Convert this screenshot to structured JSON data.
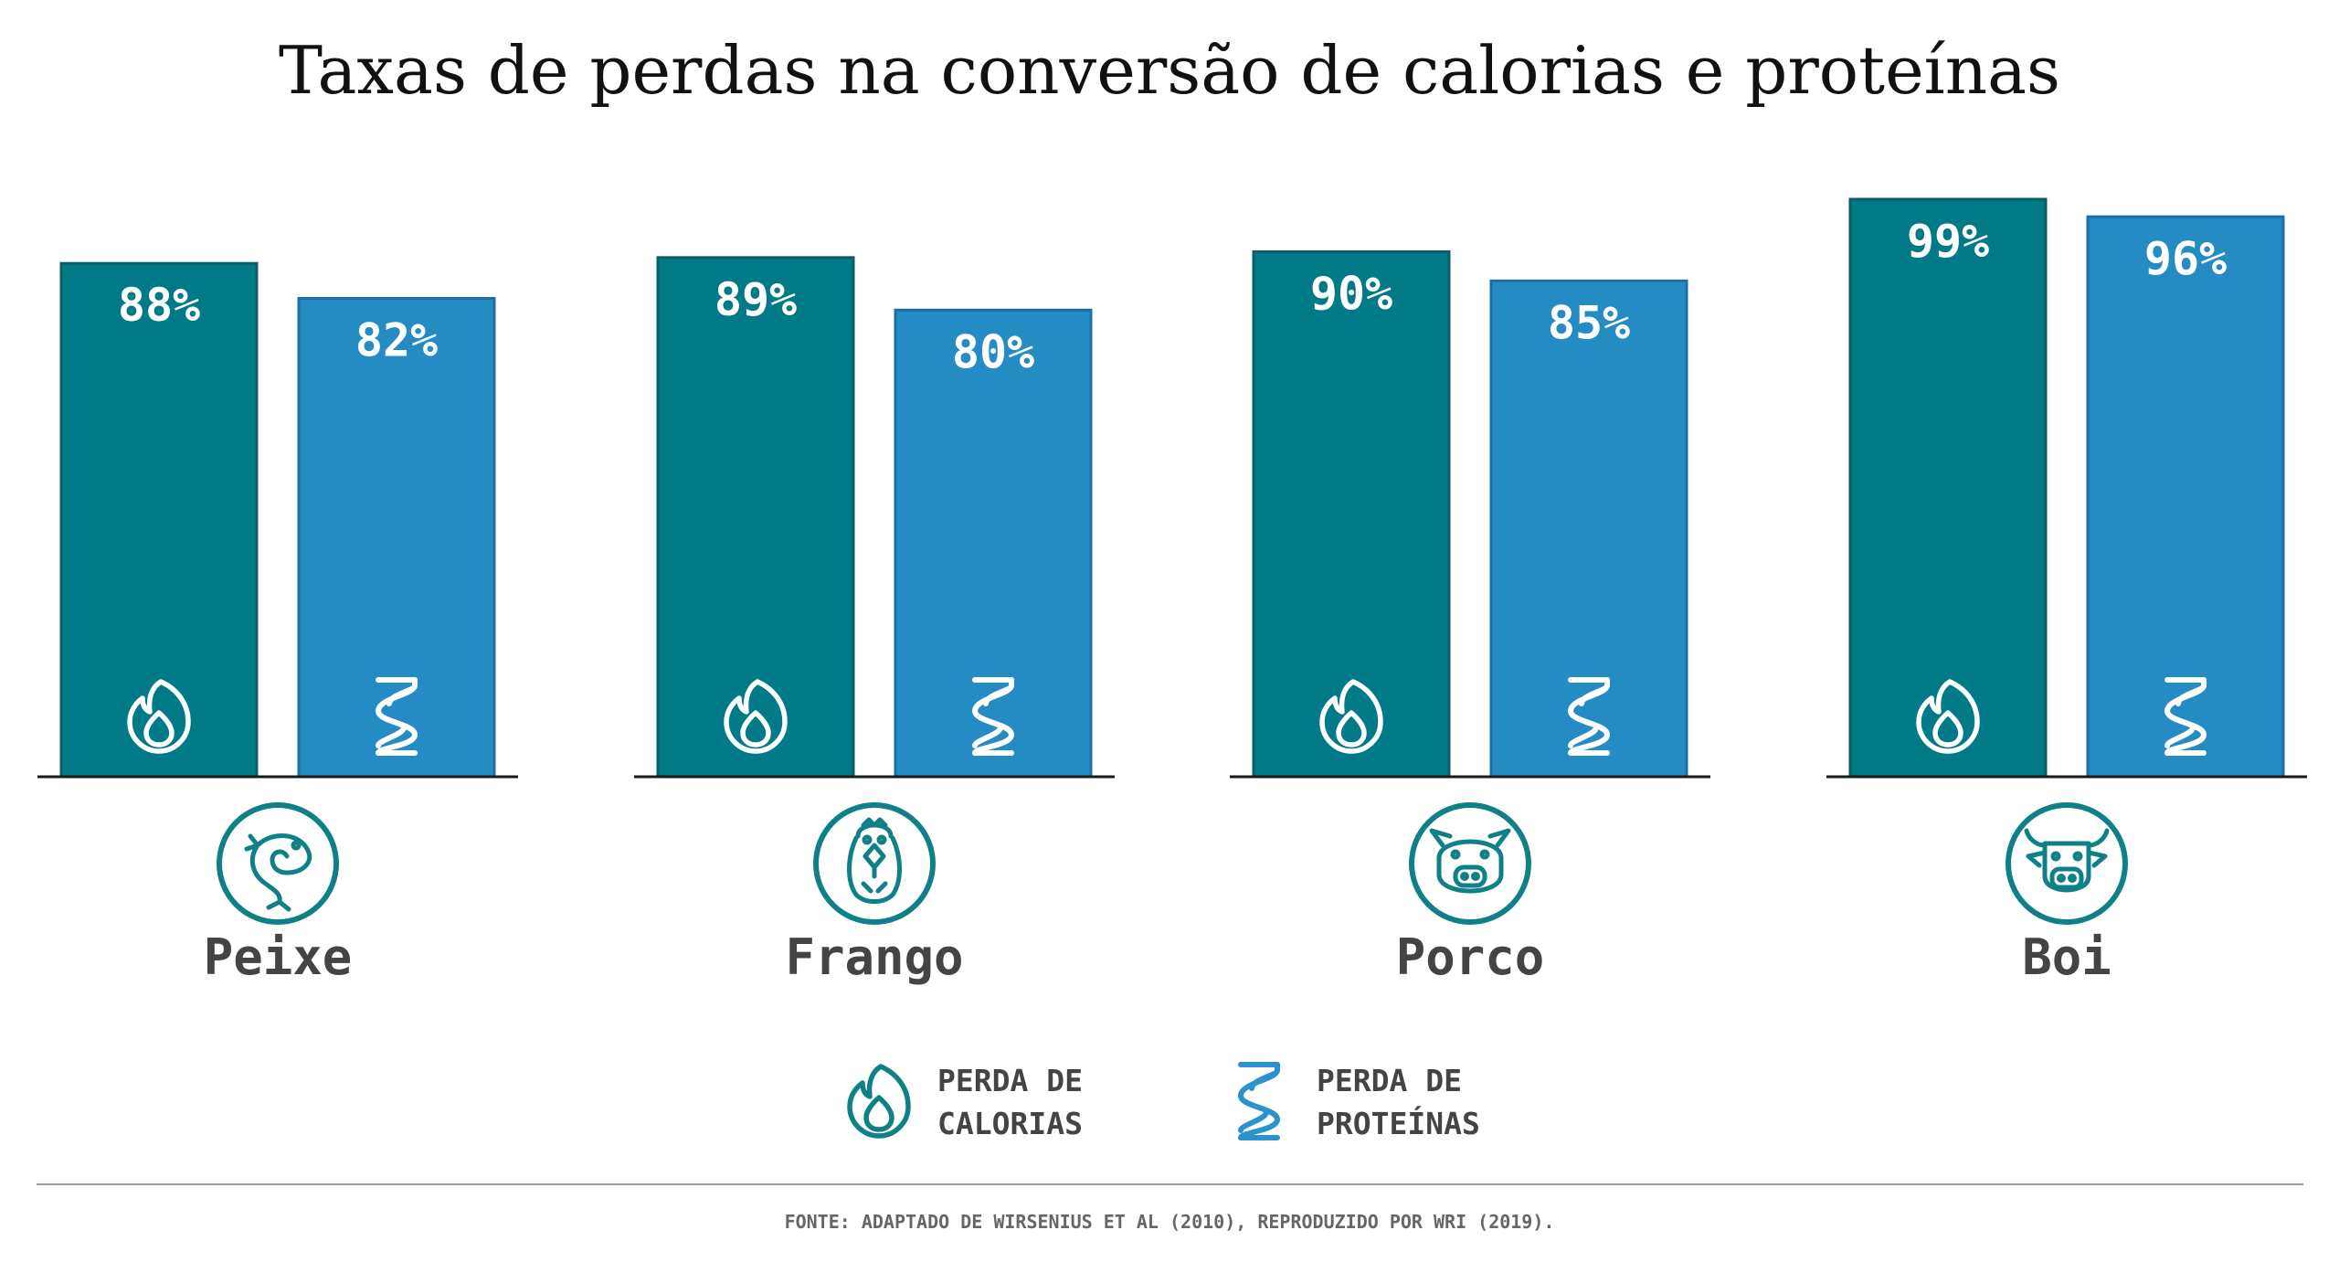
{
  "chart_data": {
    "type": "bar",
    "title": "Taxas de perdas na conversão de calorias e proteínas",
    "categories": [
      "Peixe",
      "Frango",
      "Porco",
      "Boi"
    ],
    "category_icons": [
      "fish-icon",
      "chicken-icon",
      "pig-icon",
      "cow-icon"
    ],
    "series": [
      {
        "name": "PERDA DE CALORIAS",
        "legend_lines": [
          "PERDA DE",
          "CALORIAS"
        ],
        "icon": "flame-icon",
        "values": [
          88,
          89,
          90,
          99
        ],
        "labels": [
          "88%",
          "89%",
          "90%",
          "99%"
        ]
      },
      {
        "name": "PERDA DE PROTEÍNAS",
        "legend_lines": [
          "PERDA DE",
          "PROTEÍNAS"
        ],
        "icon": "protein-helix-icon",
        "values": [
          82,
          80,
          85,
          96
        ],
        "labels": [
          "82%",
          "80%",
          "85%",
          "96%"
        ]
      }
    ],
    "ylim": [
      0,
      100
    ],
    "value_unit": "%",
    "grid": false,
    "legend_position": "bottom-center",
    "xlabel": "",
    "ylabel": ""
  },
  "colors": {
    "calorias": "#007A87",
    "proteinas": "#258CC3",
    "calorias_stroke": "#0B5E67",
    "proteinas_stroke": "#1C6FA5",
    "icon_teal": "#0F8088",
    "legend_protein": "#2A93CB",
    "axis": "#1a1a1a",
    "divider": "#9a9a9a"
  },
  "source": "FONTE: ADAPTADO DE WIRSENIUS ET AL (2010), REPRODUZIDO POR WRI (2019)."
}
